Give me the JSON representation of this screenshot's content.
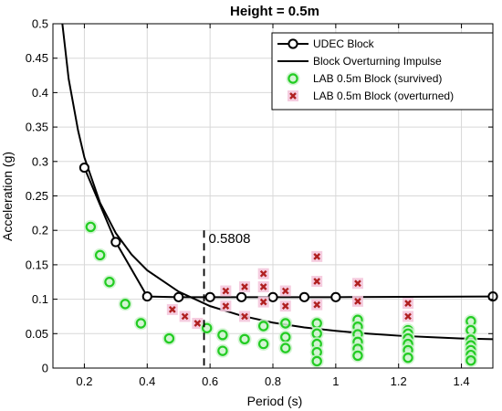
{
  "chart_data": {
    "type": "scatter",
    "title": "Height = 0.5m",
    "xlabel": "Period (s)",
    "ylabel": "Acceleration (g)",
    "xlim": [
      0.1,
      1.5
    ],
    "ylim": [
      0,
      0.5
    ],
    "xticks": [
      0.2,
      0.4,
      0.6,
      0.8,
      1,
      1.2,
      1.4
    ],
    "xtick_labels": [
      "0.2",
      "0.4",
      "0.6",
      "0.8",
      "1",
      "1.2",
      "1.4"
    ],
    "yticks": [
      0,
      0.05,
      0.1,
      0.15,
      0.2,
      0.25,
      0.3,
      0.35,
      0.4,
      0.45,
      0.5
    ],
    "ytick_labels": [
      "0",
      "0.05",
      "0.1",
      "0.15",
      "0.2",
      "0.25",
      "0.3",
      "0.35",
      "0.4",
      "0.45",
      "0.5"
    ],
    "grid": true,
    "legend_position": "top-right",
    "annotation": {
      "x": 0.5808,
      "label": "0.5808"
    },
    "series": [
      {
        "name": "UDEC Block",
        "kind": "line-marker",
        "color": "#000000",
        "x": [
          0.2,
          0.3,
          0.4,
          0.5,
          0.6,
          0.7,
          0.8,
          0.9,
          1.0,
          1.5
        ],
        "y": [
          0.291,
          0.183,
          0.104,
          0.103,
          0.103,
          0.103,
          0.103,
          0.103,
          0.103,
          0.104
        ]
      },
      {
        "name": "Block Overturning Impulse",
        "kind": "line",
        "color": "#000000",
        "x": [
          0.13,
          0.15,
          0.18,
          0.2,
          0.25,
          0.3,
          0.35,
          0.4,
          0.5,
          0.6,
          0.7,
          0.8,
          0.9,
          1.0,
          1.1,
          1.2,
          1.3,
          1.4,
          1.5
        ],
        "y": [
          0.5,
          0.42,
          0.345,
          0.306,
          0.24,
          0.196,
          0.165,
          0.142,
          0.111,
          0.09,
          0.076,
          0.066,
          0.059,
          0.054,
          0.05,
          0.047,
          0.045,
          0.043,
          0.042
        ]
      },
      {
        "name": "LAB 0.5m Block (survived)",
        "kind": "marker",
        "color": "#22cc22",
        "x": [
          0.22,
          0.25,
          0.28,
          0.33,
          0.38,
          0.47,
          0.59,
          0.64,
          0.64,
          0.71,
          0.77,
          0.77,
          0.84,
          0.84,
          0.84,
          0.94,
          0.94,
          0.94,
          0.94,
          0.94,
          1.07,
          1.07,
          1.07,
          1.07,
          1.07,
          1.07,
          1.23,
          1.23,
          1.23,
          1.23,
          1.23,
          1.23,
          1.43,
          1.43,
          1.43,
          1.43,
          1.43,
          1.43,
          1.43
        ],
        "y": [
          0.205,
          0.164,
          0.125,
          0.093,
          0.065,
          0.043,
          0.058,
          0.048,
          0.025,
          0.042,
          0.061,
          0.035,
          0.065,
          0.045,
          0.029,
          0.065,
          0.05,
          0.035,
          0.023,
          0.01,
          0.07,
          0.06,
          0.049,
          0.038,
          0.028,
          0.018,
          0.055,
          0.05,
          0.043,
          0.035,
          0.026,
          0.015,
          0.068,
          0.055,
          0.041,
          0.033,
          0.026,
          0.019,
          0.011
        ]
      },
      {
        "name": "LAB 0.5m Block (overturned)",
        "kind": "marker",
        "color": "#b02020",
        "x": [
          0.48,
          0.52,
          0.56,
          0.65,
          0.65,
          0.71,
          0.71,
          0.77,
          0.77,
          0.77,
          0.84,
          0.84,
          0.94,
          0.94,
          0.94,
          1.07,
          1.07,
          1.23,
          1.23
        ],
        "y": [
          0.085,
          0.075,
          0.065,
          0.112,
          0.09,
          0.118,
          0.075,
          0.137,
          0.118,
          0.096,
          0.112,
          0.09,
          0.162,
          0.126,
          0.092,
          0.123,
          0.097,
          0.094,
          0.075
        ]
      }
    ]
  }
}
